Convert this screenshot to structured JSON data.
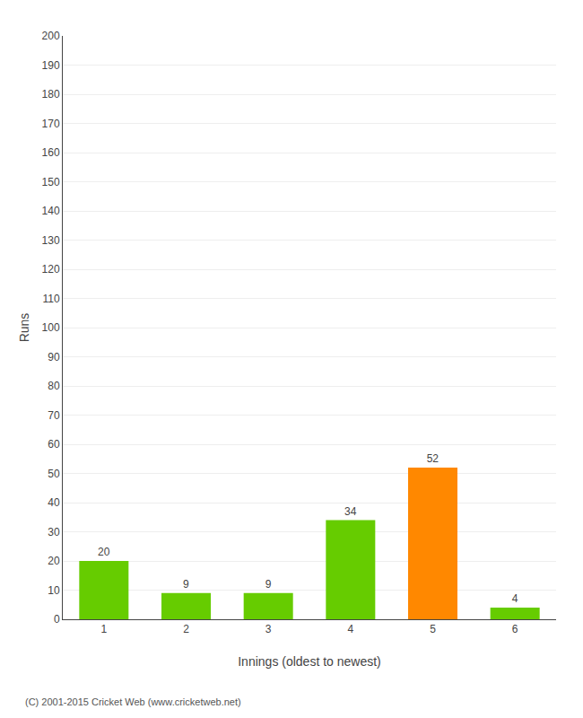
{
  "chart_data": {
    "type": "bar",
    "categories": [
      "1",
      "2",
      "3",
      "4",
      "5",
      "6"
    ],
    "values": [
      20,
      9,
      9,
      34,
      52,
      4
    ],
    "colors": [
      "#66cc00",
      "#66cc00",
      "#66cc00",
      "#66cc00",
      "#ff8800",
      "#66cc00"
    ],
    "xlabel": "Innings (oldest to newest)",
    "ylabel": "Runs",
    "ylim": [
      0,
      200
    ],
    "yticks": [
      0,
      10,
      20,
      30,
      40,
      50,
      60,
      70,
      80,
      90,
      100,
      110,
      120,
      130,
      140,
      150,
      160,
      170,
      180,
      190,
      200
    ],
    "grid": true,
    "data_labels": true,
    "annotations": [
      "(C) 2001-2015 Cricket Web (www.cricketweb.net)"
    ]
  }
}
